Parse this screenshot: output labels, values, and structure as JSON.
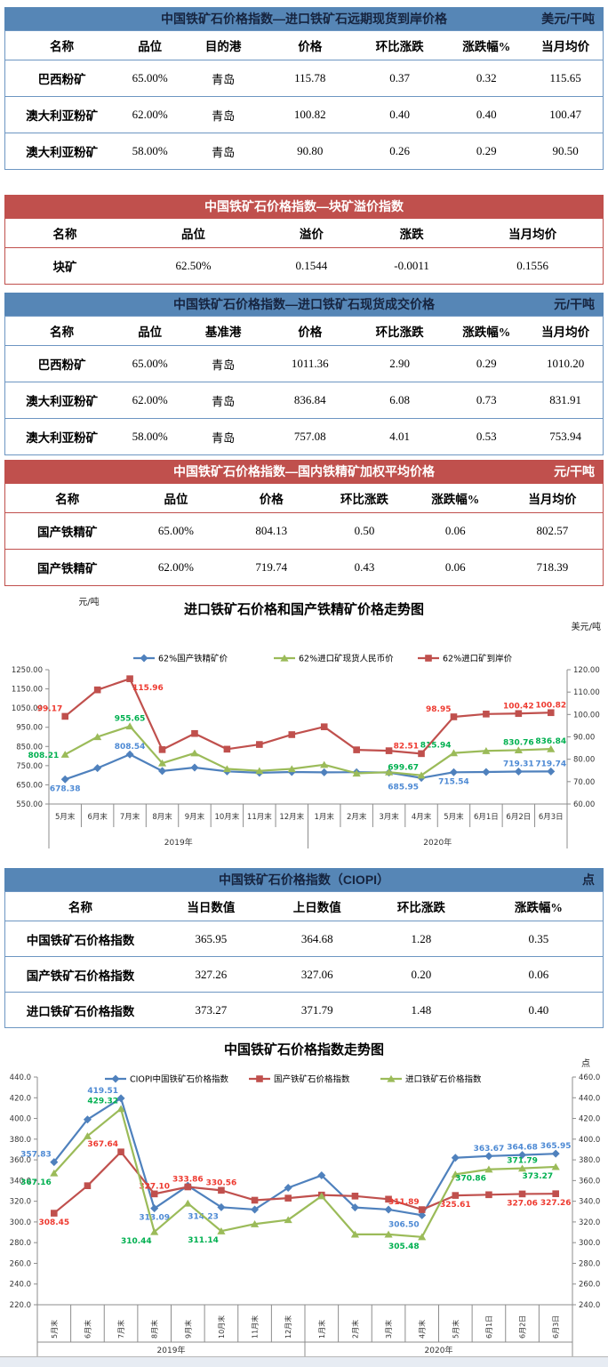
{
  "colors": {
    "blue_header_bg": "#5686b6",
    "blue_header_text": "#16243f",
    "red_header_bg": "#c0504d",
    "red_header_text": "#ffffff",
    "blue_border": "#6d96c2",
    "red_border": "#c0504d",
    "series_blue": "#4f81bd",
    "series_red": "#c0504d",
    "series_green": "#9bbb59",
    "label_blue": "#4e8ad4",
    "label_red": "#ee3a30",
    "label_green": "#00b050"
  },
  "tables": [
    {
      "id": "forward",
      "theme": "blue",
      "title": "中国铁矿石价格指数—进口铁矿石远期现货到岸价格",
      "unit": "美元/干吨",
      "columns": [
        "名称",
        "品位",
        "目的港",
        "价格",
        "环比涨跌",
        "涨跌幅%",
        "当月均价"
      ],
      "rows": [
        [
          "巴西粉矿",
          "65.00%",
          "青岛",
          "115.78",
          "0.37",
          "0.32",
          "115.65"
        ],
        [
          "澳大利亚粉矿",
          "62.00%",
          "青岛",
          "100.82",
          "0.40",
          "0.40",
          "100.47"
        ],
        [
          "澳大利亚粉矿",
          "58.00%",
          "青岛",
          "90.80",
          "0.26",
          "0.29",
          "90.50"
        ]
      ]
    },
    {
      "id": "lump-premium",
      "theme": "red",
      "title": "中国铁矿石价格指数—块矿溢价指数",
      "unit": "",
      "columns": [
        "名称",
        "品位",
        "溢价",
        "涨跌",
        "当月均价"
      ],
      "rows": [
        [
          "块矿",
          "62.50%",
          "0.1544",
          "-0.0011",
          "0.1556"
        ]
      ]
    },
    {
      "id": "spot",
      "theme": "blue",
      "title": "中国铁矿石价格指数—进口铁矿石现货成交价格",
      "unit": "元/干吨",
      "columns": [
        "名称",
        "品位",
        "基准港",
        "价格",
        "环比涨跌",
        "涨跌幅%",
        "当月均价"
      ],
      "rows": [
        [
          "巴西粉矿",
          "65.00%",
          "青岛",
          "1011.36",
          "2.90",
          "0.29",
          "1010.20"
        ],
        [
          "澳大利亚粉矿",
          "62.00%",
          "青岛",
          "836.84",
          "6.08",
          "0.73",
          "831.91"
        ],
        [
          "澳大利亚粉矿",
          "58.00%",
          "青岛",
          "757.08",
          "4.01",
          "0.53",
          "753.94"
        ]
      ]
    },
    {
      "id": "domestic",
      "theme": "red",
      "title": "中国铁矿石价格指数—国内铁精矿加权平均价格",
      "unit": "元/干吨",
      "columns": [
        "名称",
        "品位",
        "价格",
        "环比涨跌",
        "涨跌幅%",
        "当月均价"
      ],
      "rows": [
        [
          "国产铁精矿",
          "65.00%",
          "804.13",
          "0.50",
          "0.06",
          "802.57"
        ],
        [
          "国产铁精矿",
          "62.00%",
          "719.74",
          "0.43",
          "0.06",
          "718.39"
        ]
      ]
    },
    {
      "id": "ciopi",
      "theme": "blue",
      "title": "中国铁矿石价格指数（CIOPI）",
      "unit": "点",
      "columns": [
        "名称",
        "当日数值",
        "上日数值",
        "环比涨跌",
        "涨跌幅%"
      ],
      "rows": [
        [
          "中国铁矿石价格指数",
          "365.95",
          "364.68",
          "1.28",
          "0.35"
        ],
        [
          "国产铁矿石价格指数",
          "327.26",
          "327.06",
          "0.20",
          "0.06"
        ],
        [
          "进口铁矿石价格指数",
          "373.27",
          "371.79",
          "1.48",
          "0.40"
        ]
      ]
    }
  ],
  "chart_data": [
    {
      "type": "line",
      "title": "进口铁矿石价格和国产铁精矿价格走势图",
      "left_axis": {
        "unit": "元/吨",
        "min": 550,
        "max": 1250,
        "step": 100,
        "decimals": 2
      },
      "right_axis": {
        "unit": "美元/吨",
        "min": 60,
        "max": 120,
        "step": 10,
        "decimals": 2
      },
      "categories": [
        "5月末",
        "6月末",
        "7月末",
        "8月末",
        "9月末",
        "10月末",
        "11月末",
        "12月末",
        "1月末",
        "2月末",
        "3月末",
        "4月末",
        "5月末",
        "6月1日",
        "6月2日",
        "6月3日"
      ],
      "year_groups": [
        {
          "label": "2019年",
          "span": 8
        },
        {
          "label": "2020年",
          "span": 8
        }
      ],
      "legend_position": "top",
      "grid": false,
      "series": [
        {
          "name": "62%国产铁精矿价",
          "axis": "left",
          "marker": "diamond",
          "color_key": "series_blue",
          "label_color_key": "label_blue",
          "values": [
            678.38,
            737,
            808.54,
            722,
            740,
            720,
            713,
            717,
            715,
            716,
            714,
            685.95,
            715.54,
            717,
            719.31,
            719.74
          ],
          "point_labels": [
            {
              "i": 0,
              "text": "678.38",
              "pos": "below"
            },
            {
              "i": 2,
              "text": "808.54",
              "pos": "above"
            },
            {
              "i": 11,
              "text": "685.95",
              "pos": "below-left"
            },
            {
              "i": 12,
              "text": "715.54",
              "pos": "below"
            },
            {
              "i": 14,
              "text": "719.31",
              "pos": "above"
            },
            {
              "i": 15,
              "text": "719.74",
              "pos": "above"
            }
          ]
        },
        {
          "name": "62%进口矿现货人民币价",
          "axis": "left",
          "marker": "triangle",
          "color_key": "series_green",
          "label_color_key": "label_green",
          "values": [
            808.21,
            900,
            955.65,
            763,
            815,
            733,
            723,
            733,
            755,
            710,
            716,
            699.67,
            815.94,
            827,
            830.76,
            836.84
          ],
          "point_labels": [
            {
              "i": 0,
              "text": "808.21",
              "pos": "left"
            },
            {
              "i": 2,
              "text": "955.65",
              "pos": "above"
            },
            {
              "i": 11,
              "text": "699.67",
              "pos": "above-left"
            },
            {
              "i": 12,
              "text": "815.94",
              "pos": "above-left"
            },
            {
              "i": 14,
              "text": "830.76",
              "pos": "above"
            },
            {
              "i": 15,
              "text": "836.84",
              "pos": "above"
            }
          ]
        },
        {
          "name": "62%进口矿到岸价",
          "axis": "right",
          "marker": "square",
          "color_key": "series_red",
          "label_color_key": "label_red",
          "values": [
            99.17,
            111,
            115.96,
            84.3,
            91.5,
            84.5,
            86.6,
            91,
            94.5,
            84.2,
            83.8,
            82.51,
            98.95,
            100.2,
            100.42,
            100.82
          ],
          "point_labels": [
            {
              "i": 0,
              "text": "99.17",
              "pos": "above-left"
            },
            {
              "i": 2,
              "text": "115.96",
              "pos": "below-right"
            },
            {
              "i": 11,
              "text": "82.51",
              "pos": "above-left"
            },
            {
              "i": 12,
              "text": "98.95",
              "pos": "above-left"
            },
            {
              "i": 14,
              "text": "100.42",
              "pos": "above"
            },
            {
              "i": 15,
              "text": "100.82",
              "pos": "above"
            }
          ]
        }
      ]
    },
    {
      "type": "line",
      "title": "中国铁矿石价格指数走势图",
      "left_axis": {
        "unit": "",
        "min": 220,
        "max": 440,
        "step": 20,
        "decimals": 1
      },
      "right_axis": {
        "unit": "点",
        "min": 240,
        "max": 460,
        "step": 20,
        "decimals": 1
      },
      "categories": [
        "5月末",
        "6月末",
        "7月末",
        "8月末",
        "9月末",
        "10月末",
        "11月末",
        "12月末",
        "1月末",
        "2月末",
        "3月末",
        "4月末",
        "5月末",
        "6月1日",
        "6月2日",
        "6月3日"
      ],
      "year_groups": [
        {
          "label": "2019年",
          "span": 8
        },
        {
          "label": "2020年",
          "span": 8
        }
      ],
      "legend_position": "top",
      "grid": false,
      "series": [
        {
          "name": "CIOPI中国铁矿石价格指数",
          "axis": "left",
          "marker": "diamond",
          "color_key": "series_blue",
          "label_color_key": "label_blue",
          "values": [
            357.83,
            399,
            419.51,
            313.09,
            335,
            314.23,
            312,
            333,
            345,
            314,
            312,
            306.5,
            362,
            363.67,
            364.68,
            365.95
          ],
          "point_labels": [
            {
              "i": 0,
              "text": "357.83",
              "pos": "above-left"
            },
            {
              "i": 2,
              "text": "419.51",
              "pos": "above-left"
            },
            {
              "i": 3,
              "text": "313.09",
              "pos": "below"
            },
            {
              "i": 5,
              "text": "314.23",
              "pos": "below-left"
            },
            {
              "i": 11,
              "text": "306.50",
              "pos": "below-left"
            },
            {
              "i": 13,
              "text": "363.67",
              "pos": "above"
            },
            {
              "i": 14,
              "text": "364.68",
              "pos": "above"
            },
            {
              "i": 15,
              "text": "365.95",
              "pos": "above"
            }
          ]
        },
        {
          "name": "国产铁矿石价格指数",
          "axis": "left",
          "marker": "square",
          "color_key": "series_red",
          "label_color_key": "label_red",
          "values": [
            308.45,
            335,
            367.64,
            327.1,
            333.86,
            330.56,
            321,
            323,
            326,
            325,
            322,
            311.89,
            325.61,
            326.3,
            327.06,
            327.26
          ],
          "point_labels": [
            {
              "i": 0,
              "text": "308.45",
              "pos": "below"
            },
            {
              "i": 2,
              "text": "367.64",
              "pos": "above-left"
            },
            {
              "i": 3,
              "text": "327.10",
              "pos": "above"
            },
            {
              "i": 4,
              "text": "333.86",
              "pos": "above"
            },
            {
              "i": 5,
              "text": "330.56",
              "pos": "above"
            },
            {
              "i": 11,
              "text": "311.89",
              "pos": "above-left"
            },
            {
              "i": 12,
              "text": "325.61",
              "pos": "below"
            },
            {
              "i": 14,
              "text": "327.06",
              "pos": "below"
            },
            {
              "i": 15,
              "text": "327.26",
              "pos": "below"
            }
          ]
        },
        {
          "name": "进口铁矿石价格指数",
          "axis": "right",
          "marker": "triangle",
          "color_key": "series_green",
          "label_color_key": "label_green",
          "values": [
            367.16,
            403,
            429.32,
            310.44,
            338,
            311.14,
            318,
            322,
            345,
            308,
            308,
            305.48,
            366,
            370.86,
            371.79,
            373.27
          ],
          "point_labels": [
            {
              "i": 0,
              "text": "367.16",
              "pos": "below-left"
            },
            {
              "i": 2,
              "text": "429.32",
              "pos": "above-left"
            },
            {
              "i": 3,
              "text": "310.44",
              "pos": "below-left"
            },
            {
              "i": 5,
              "text": "311.14",
              "pos": "below-left"
            },
            {
              "i": 11,
              "text": "305.48",
              "pos": "below-left"
            },
            {
              "i": 13,
              "text": "370.86",
              "pos": "below-left"
            },
            {
              "i": 14,
              "text": "371.79",
              "pos": "above"
            },
            {
              "i": 15,
              "text": "373.27",
              "pos": "below-left"
            }
          ]
        }
      ]
    }
  ]
}
